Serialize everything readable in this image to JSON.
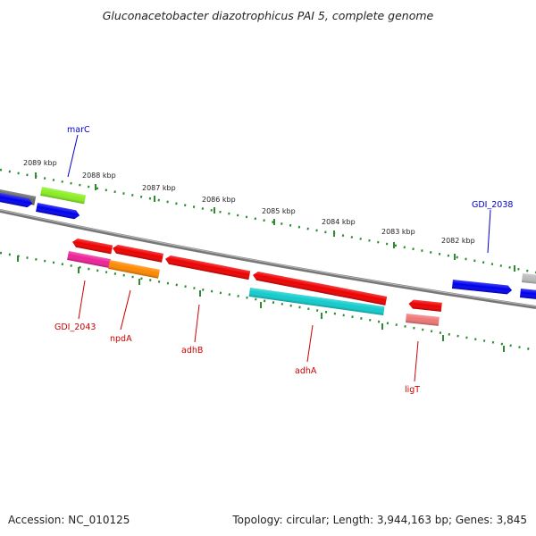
{
  "title": "Gluconacetobacter diazotrophicus PAI 5, complete genome",
  "footer": {
    "accession": "Accession: NC_010125",
    "summary": "Topology: circular; Length: 3,944,163 bp; Genes: 3,845"
  },
  "scale_labels": [
    "2089 kbp",
    "2088 kbp",
    "2087 kbp",
    "2086 kbp",
    "2085 kbp",
    "2084 kbp",
    "2083 kbp",
    "2082 kbp"
  ],
  "gene_labels": [
    {
      "name": "marC",
      "strand": "forward"
    },
    {
      "name": "GDI_2038",
      "strand": "forward"
    },
    {
      "name": "GDI_2043",
      "strand": "reverse"
    },
    {
      "name": "npdA",
      "strand": "reverse"
    },
    {
      "name": "adhB",
      "strand": "reverse"
    },
    {
      "name": "adhA",
      "strand": "reverse"
    },
    {
      "name": "ligT",
      "strand": "reverse"
    }
  ],
  "colors": {
    "forward_label": "#0000cc",
    "reverse_label": "#cc0000",
    "backbone": "#777777",
    "scale": "#2e8b2e",
    "blue": "#0000ee",
    "red": "#ee0000",
    "grey": "#666666",
    "light_grey": "#bbbbbb",
    "lime": "#88ee22",
    "magenta": "#ee2299",
    "orange": "#ff8800",
    "cyan": "#11cccc",
    "pink": "#ee7777"
  }
}
